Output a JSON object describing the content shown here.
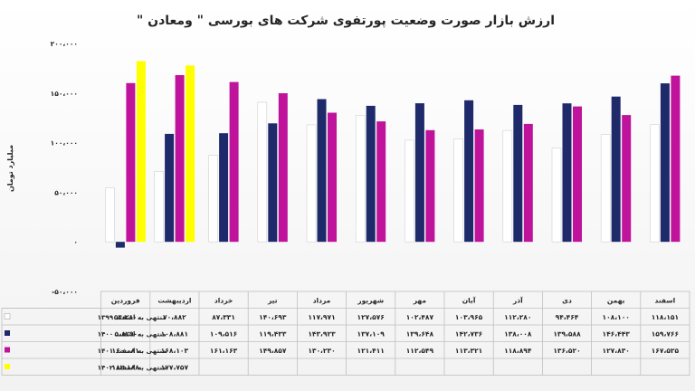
{
  "chart_data": {
    "type": "bar",
    "title": "ارزش بازار صورت وضعیت پورتفوی شرکت های بورسی \" ومعادن \"",
    "ylabel": "میلیارد تومان",
    "ylim": [
      -50000,
      200000
    ],
    "yticks": [
      200000,
      150000,
      100000,
      50000,
      0,
      -50000
    ],
    "ytick_labels": [
      "۲۰۰،۰۰۰",
      "۱۵۰،۰۰۰",
      "۱۰۰،۰۰۰",
      "۵۰،۰۰۰",
      "۰",
      "-۵۰،۰۰۰"
    ],
    "grid": false,
    "legend": "table-below",
    "categories": [
      "اسفند",
      "بهمن",
      "دی",
      "آذر",
      "آبان",
      "مهر",
      "شهریور",
      "مرداد",
      "تیر",
      "خرداد",
      "اردیبهشت",
      "فروردین"
    ],
    "series": [
      {
        "name": "منتهی به اسفند ۱۳۹۹",
        "color": "#ffffff",
        "values": [
          118151,
          108100,
          94464,
          112280,
          103965,
          102487,
          127576,
          117971,
          140693,
          87331,
          70882,
          54280
        ],
        "labels": [
          "۱۱۸،۱۵۱",
          "۱۰۸،۱۰۰",
          "۹۴،۴۶۴",
          "۱۱۲،۲۸۰",
          "۱۰۳،۹۶۵",
          "۱۰۲،۴۸۷",
          "۱۲۷،۵۷۶",
          "۱۱۷،۹۷۱",
          "۱۴۰،۶۹۳",
          "۸۷،۳۳۱",
          "۷۰،۸۸۲",
          "۵۴،۲۸۰"
        ]
      },
      {
        "name": "منتهی به اسفند ۱۴۰۰",
        "color": "#1f2a6b",
        "values": [
          159766,
          146443,
          139588,
          138008,
          142736,
          139648,
          137109,
          143923,
          119433,
          109516,
          108881,
          -5829
        ],
        "labels": [
          "۱۵۹،۷۶۶",
          "۱۴۶،۴۴۳",
          "۱۳۹،۵۸۸",
          "۱۳۸،۰۰۸",
          "۱۴۲،۷۳۶",
          "۱۳۹،۶۴۸",
          "۱۳۷،۱۰۹",
          "۱۴۳،۹۲۳",
          "۱۱۹،۴۳۳",
          "۱۰۹،۵۱۶",
          "۱۰۸،۸۸۱",
          "۵،۸۲۹-"
        ]
      },
      {
        "name": "منتهی به اسفند ۱۴۰۱",
        "color": "#c0139b",
        "values": [
          167525,
          127830,
          136520,
          118894,
          113321,
          112549,
          121411,
          130230,
          149857,
          161163,
          168103,
          160081
        ],
        "labels": [
          "۱۶۷،۵۲۵",
          "۱۲۷،۸۳۰",
          "۱۳۶،۵۲۰",
          "۱۱۸،۸۹۴",
          "۱۱۳،۳۲۱",
          "۱۱۲،۵۴۹",
          "۱۲۱،۴۱۱",
          "۱۳۰،۲۳۰",
          "۱۴۹،۸۵۷",
          "۱۶۱،۱۶۳",
          "۱۶۸،۱۰۳",
          "۱۶۰،۰۸۱"
        ]
      },
      {
        "name": "منتهی به اسفند ۱۴۰۲",
        "color": "#ffff00",
        "values": [
          null,
          null,
          null,
          null,
          null,
          null,
          null,
          null,
          null,
          null,
          177757,
          182188
        ],
        "labels": [
          "",
          "",
          "",
          "",
          "",
          "",
          "",
          "",
          "",
          "",
          "۱۷۷،۷۵۷",
          "۱۸۲،۱۸۸"
        ]
      }
    ]
  }
}
